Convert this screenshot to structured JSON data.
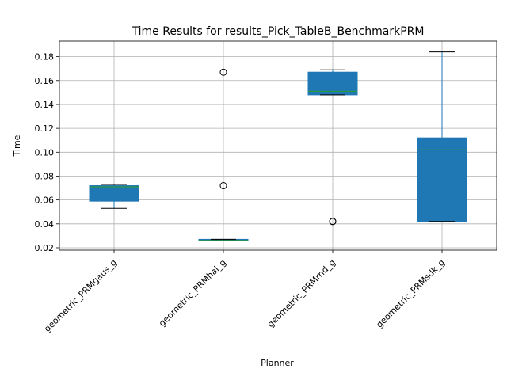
{
  "chart_data": {
    "type": "boxplot",
    "title": "Time Results for results_Pick_TableB_BenchmarkPRM",
    "xlabel": "Planner",
    "ylabel": "Time",
    "ylim": [
      0.018,
      0.193
    ],
    "yticks": [
      "0.02",
      "0.04",
      "0.06",
      "0.08",
      "0.10",
      "0.12",
      "0.14",
      "0.16",
      "0.18"
    ],
    "grid": true,
    "box_color": "#1f77b4",
    "median_color": "#2ca02c",
    "categories": [
      "geometric_PRMgaus_g",
      "geometric_PRMhal_g",
      "geometric_PRMrnd_g",
      "geometric_PRMsdk_g"
    ],
    "boxes": [
      {
        "whisker_low": 0.053,
        "q1": 0.059,
        "median": 0.071,
        "q3": 0.072,
        "whisker_high": 0.073,
        "outliers": []
      },
      {
        "whisker_low": 0.026,
        "q1": 0.026,
        "median": 0.026,
        "q3": 0.027,
        "whisker_high": 0.027,
        "outliers": [
          0.072,
          0.167
        ]
      },
      {
        "whisker_low": 0.148,
        "q1": 0.148,
        "median": 0.151,
        "q3": 0.167,
        "whisker_high": 0.169,
        "outliers": [
          0.042,
          0.042
        ]
      },
      {
        "whisker_low": 0.042,
        "q1": 0.042,
        "median": 0.102,
        "q3": 0.112,
        "whisker_high": 0.184,
        "outliers": []
      }
    ]
  }
}
